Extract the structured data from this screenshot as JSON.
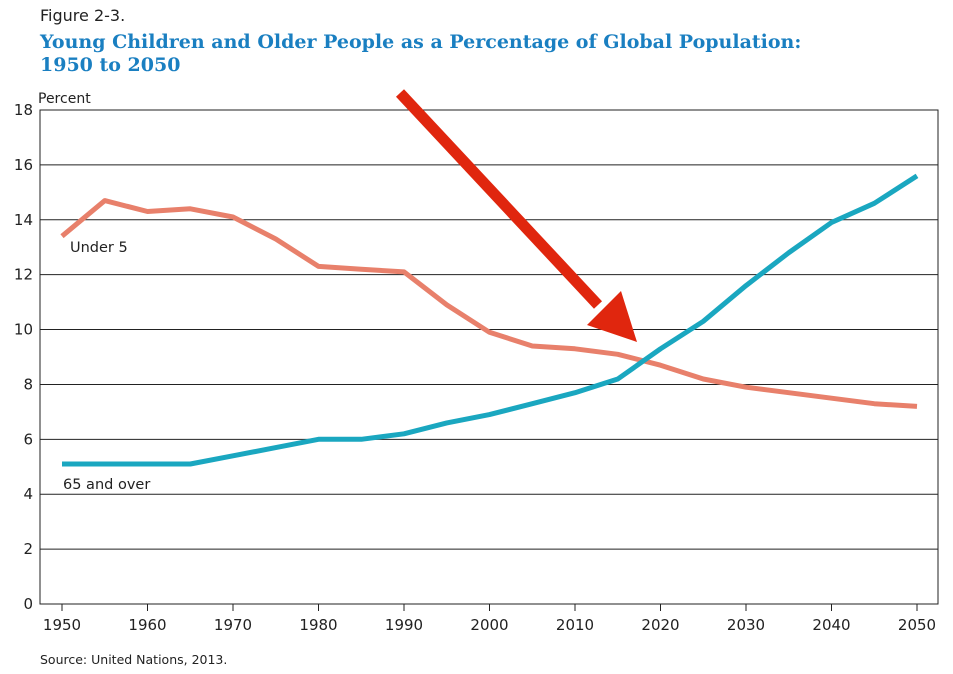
{
  "figure_label": "Figure 2-3.",
  "title_line1": "Young Children and Older People as a Percentage of Global Population:",
  "title_line2": "1950 to 2050",
  "source": "Source: United Nations, 2013.",
  "colors": {
    "title": "#1a7fc1",
    "under5": "#e8806b",
    "over65": "#1aa7c0",
    "arrow": "#e0260e",
    "grid": "#222222"
  },
  "chart_data": {
    "type": "line",
    "title": "Young Children and Older People as a Percentage of Global Population: 1950 to 2050",
    "xlabel": "",
    "ylabel": "Percent",
    "ylim": [
      0,
      18
    ],
    "xlim": [
      1950,
      2050
    ],
    "yticks": [
      0,
      2,
      4,
      6,
      8,
      10,
      12,
      14,
      16,
      18
    ],
    "xticks": [
      1950,
      1960,
      1970,
      1980,
      1990,
      2000,
      2010,
      2020,
      2030,
      2040,
      2050
    ],
    "x": [
      1950,
      1955,
      1960,
      1965,
      1970,
      1975,
      1980,
      1985,
      1990,
      1995,
      2000,
      2005,
      2010,
      2015,
      2020,
      2025,
      2030,
      2035,
      2040,
      2045,
      2050
    ],
    "series": [
      {
        "name": "Under 5",
        "values": [
          13.4,
          14.7,
          14.3,
          14.4,
          14.1,
          13.3,
          12.3,
          12.2,
          12.1,
          10.9,
          9.9,
          9.4,
          9.3,
          9.1,
          8.7,
          8.2,
          7.9,
          7.7,
          7.5,
          7.3,
          7.2
        ]
      },
      {
        "name": "65 and over",
        "values": [
          5.1,
          5.1,
          5.1,
          5.1,
          5.4,
          5.7,
          6.0,
          6.0,
          6.2,
          6.6,
          6.9,
          7.3,
          7.7,
          8.2,
          9.3,
          10.3,
          11.6,
          12.8,
          13.9,
          14.6,
          15.6
        ]
      }
    ],
    "annotations": [
      {
        "type": "arrow",
        "points_to": "crossover of series near 2018"
      }
    ],
    "grid": true
  }
}
